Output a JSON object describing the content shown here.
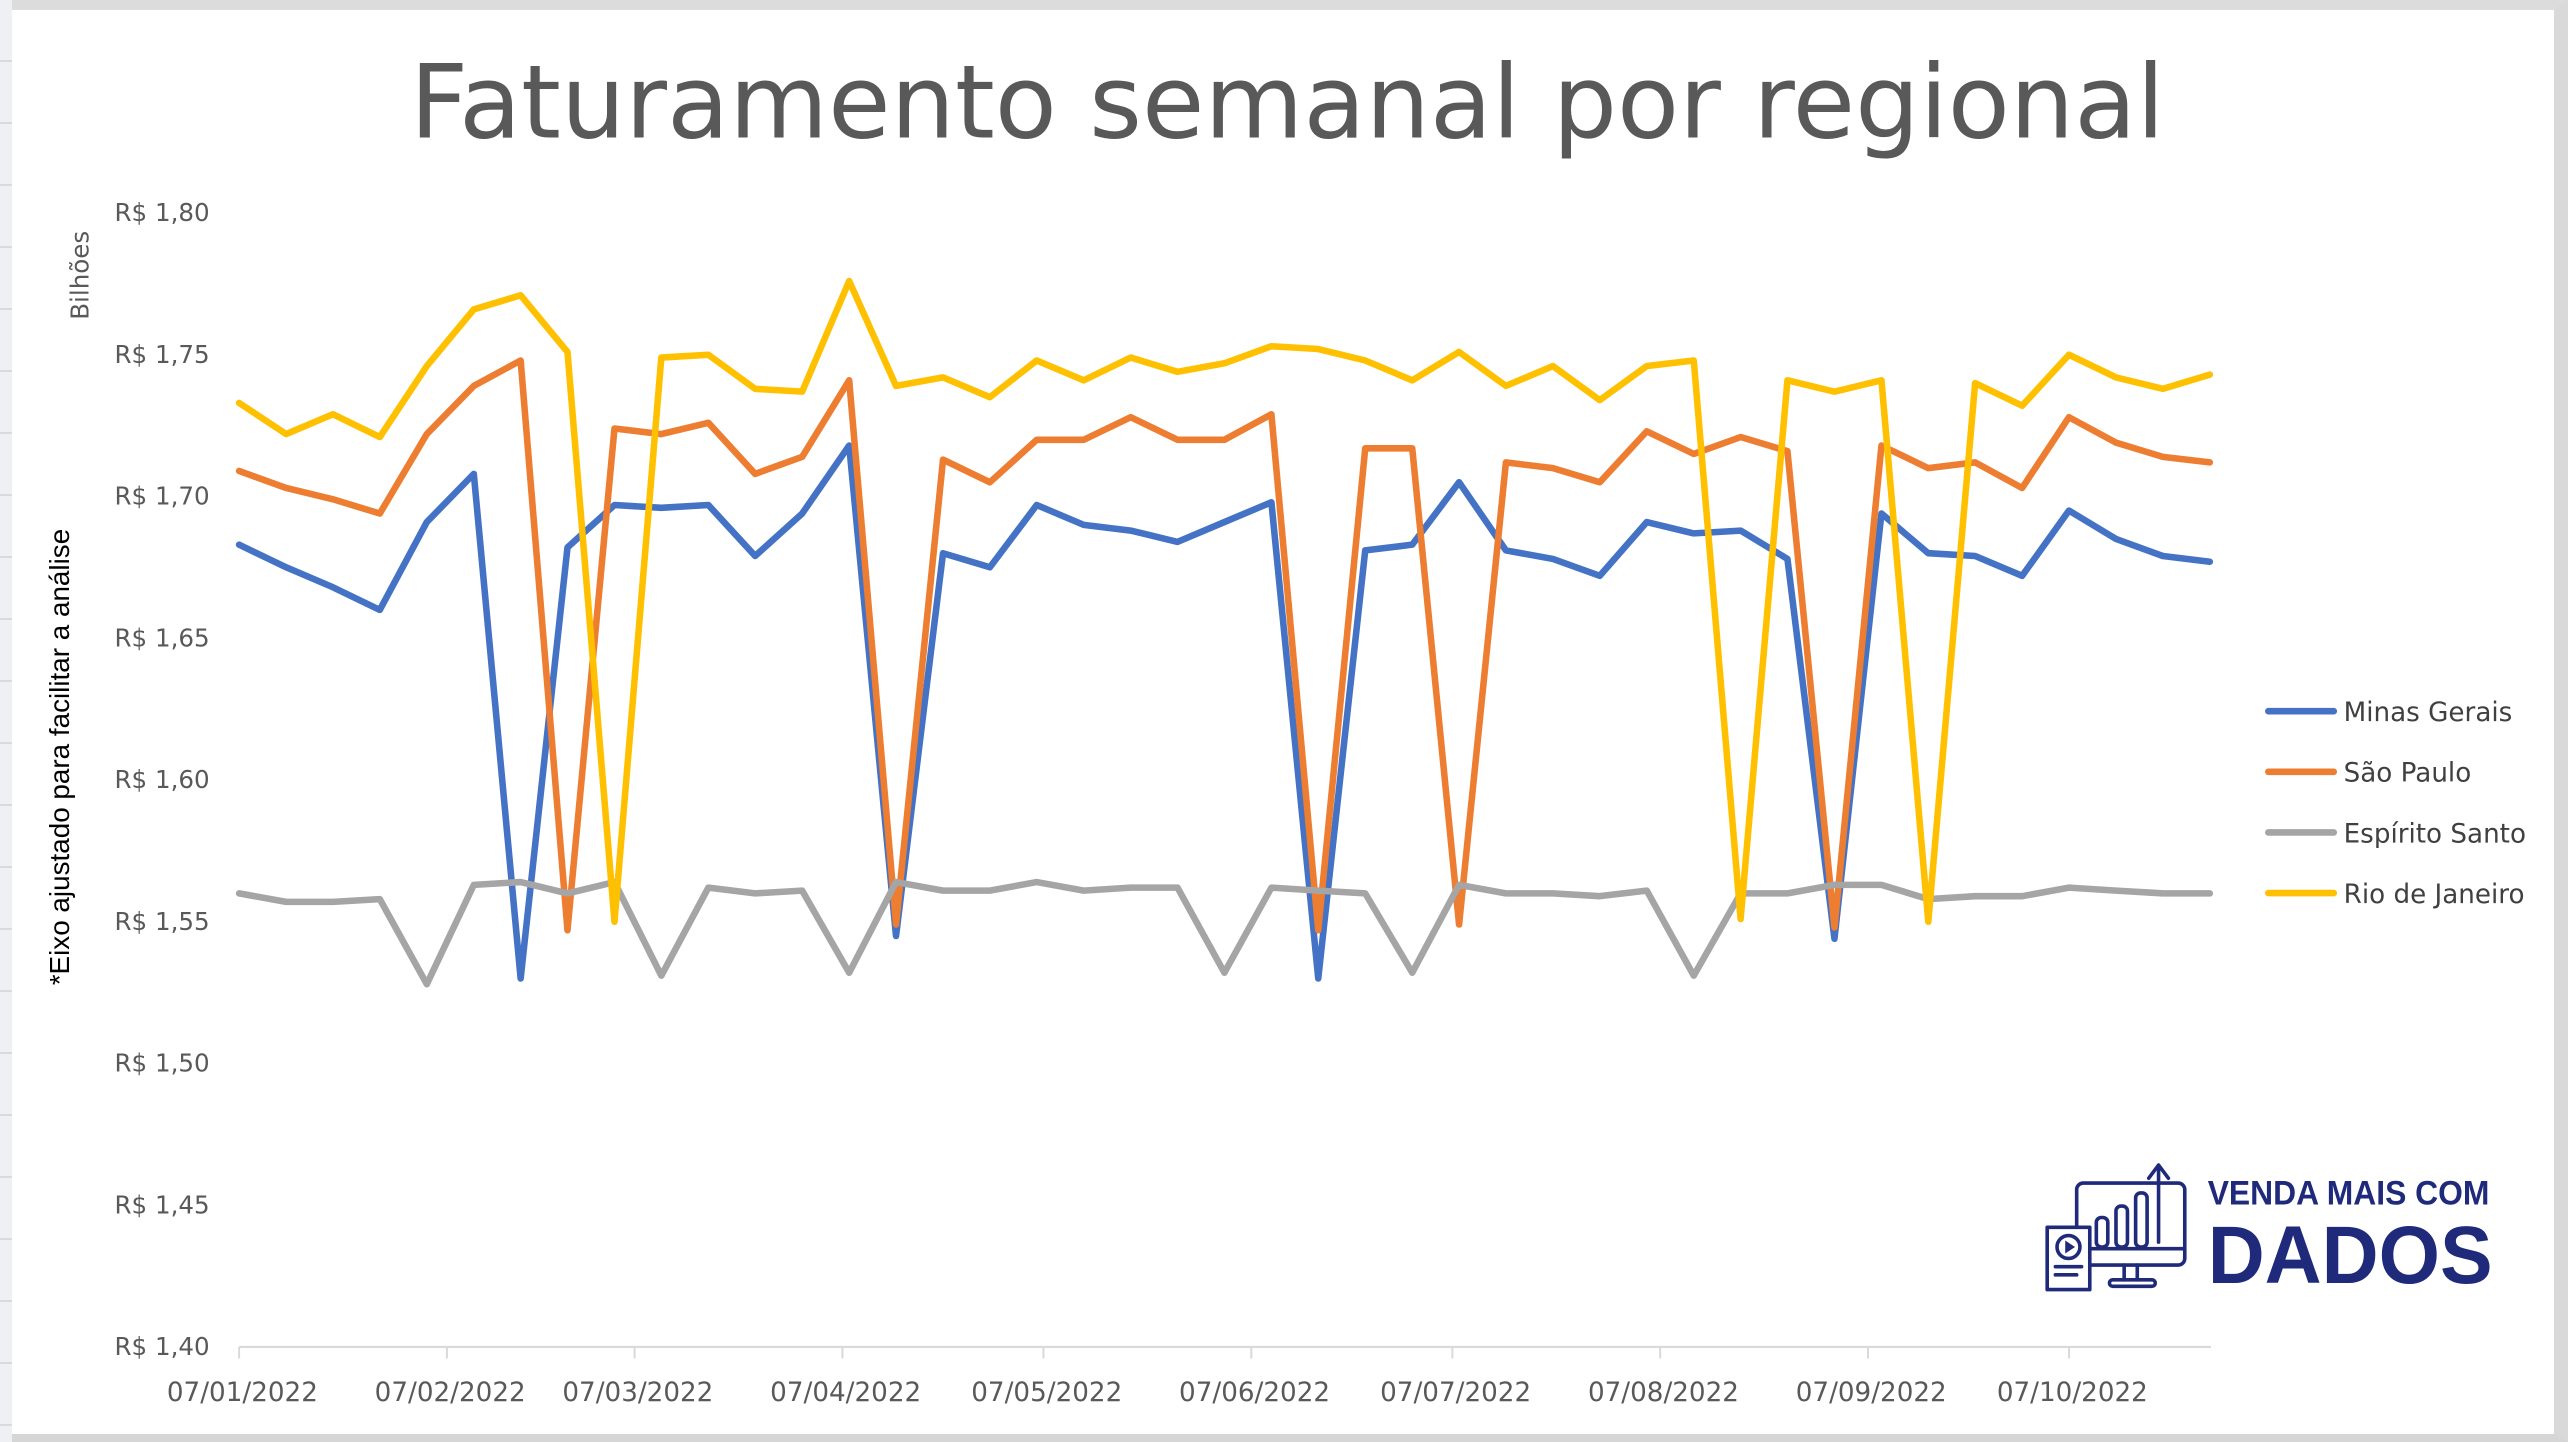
{
  "chart_data": {
    "type": "line",
    "title": "Faturamento semanal por regional",
    "xlabel": "",
    "ylabel": "*Eixo ajustado para facilitar a análise",
    "y_unit_label": "Bilhões",
    "ylim": [
      1.4,
      1.8
    ],
    "y_ticks": [
      "R$ 1,80",
      "R$ 1,75",
      "R$ 1,70",
      "R$ 1,65",
      "R$ 1,60",
      "R$ 1,55",
      "R$ 1,50",
      "R$ 1,45",
      "R$ 1,40"
    ],
    "x_ticks": [
      "07/01/2022",
      "07/02/2022",
      "07/03/2022",
      "07/04/2022",
      "07/05/2022",
      "07/06/2022",
      "07/07/2022",
      "07/08/2022",
      "07/09/2022",
      "07/10/2022"
    ],
    "x_frequency": "weekly",
    "x_start": "07/01/2022",
    "x": [
      "07/01/2022",
      "14/01/2022",
      "21/01/2022",
      "28/01/2022",
      "04/02/2022",
      "11/02/2022",
      "18/02/2022",
      "25/02/2022",
      "04/03/2022",
      "11/03/2022",
      "18/03/2022",
      "25/03/2022",
      "01/04/2022",
      "08/04/2022",
      "15/04/2022",
      "22/04/2022",
      "29/04/2022",
      "06/05/2022",
      "13/05/2022",
      "20/05/2022",
      "27/05/2022",
      "03/06/2022",
      "10/06/2022",
      "17/06/2022",
      "24/06/2022",
      "01/07/2022",
      "08/07/2022",
      "15/07/2022",
      "22/07/2022",
      "29/07/2022",
      "05/08/2022",
      "12/08/2022",
      "19/08/2022",
      "26/08/2022",
      "02/09/2022",
      "09/09/2022",
      "16/09/2022",
      "23/09/2022",
      "30/09/2022",
      "07/10/2022",
      "14/10/2022",
      "21/10/2022",
      "28/10/2022"
    ],
    "grid": false,
    "legend_position": "right",
    "series": [
      {
        "name": "Minas Gerais",
        "color": "#4472C4",
        "values": [
          1.683,
          1.675,
          1.668,
          1.66,
          1.691,
          1.708,
          1.53,
          1.682,
          1.697,
          1.696,
          1.697,
          1.679,
          1.694,
          1.718,
          1.545,
          1.68,
          1.675,
          1.697,
          1.69,
          1.688,
          1.684,
          1.691,
          1.698,
          1.53,
          1.681,
          1.683,
          1.705,
          1.681,
          1.678,
          1.672,
          1.691,
          1.687,
          1.688,
          1.678,
          1.544,
          1.694,
          1.68,
          1.679,
          1.672,
          1.695,
          1.685,
          1.679,
          1.677
        ]
      },
      {
        "name": "São Paulo",
        "color": "#ED7D31",
        "values": [
          1.709,
          1.703,
          1.699,
          1.694,
          1.722,
          1.739,
          1.748,
          1.547,
          1.724,
          1.722,
          1.726,
          1.708,
          1.714,
          1.741,
          1.549,
          1.713,
          1.705,
          1.72,
          1.72,
          1.728,
          1.72,
          1.72,
          1.729,
          1.547,
          1.717,
          1.717,
          1.549,
          1.712,
          1.71,
          1.705,
          1.723,
          1.715,
          1.721,
          1.716,
          1.548,
          1.718,
          1.71,
          1.712,
          1.703,
          1.728,
          1.719,
          1.714,
          1.712
        ]
      },
      {
        "name": "Espírito Santo",
        "color": "#A5A5A5",
        "values": [
          1.56,
          1.557,
          1.557,
          1.558,
          1.528,
          1.563,
          1.564,
          1.56,
          1.564,
          1.531,
          1.562,
          1.56,
          1.561,
          1.532,
          1.564,
          1.561,
          1.561,
          1.564,
          1.561,
          1.562,
          1.562,
          1.532,
          1.562,
          1.561,
          1.56,
          1.532,
          1.563,
          1.56,
          1.56,
          1.559,
          1.561,
          1.531,
          1.56,
          1.56,
          1.563,
          1.563,
          1.558,
          1.559,
          1.559,
          1.562,
          1.561,
          1.56,
          1.56
        ]
      },
      {
        "name": "Rio de Janeiro",
        "color": "#FFC000",
        "values": [
          1.733,
          1.722,
          1.729,
          1.721,
          1.746,
          1.766,
          1.771,
          1.751,
          1.55,
          1.749,
          1.75,
          1.738,
          1.737,
          1.776,
          1.739,
          1.742,
          1.735,
          1.748,
          1.741,
          1.749,
          1.744,
          1.747,
          1.753,
          1.752,
          1.748,
          1.741,
          1.751,
          1.739,
          1.746,
          1.734,
          1.746,
          1.748,
          1.551,
          1.741,
          1.737,
          1.741,
          1.55,
          1.74,
          1.732,
          1.75,
          1.742,
          1.738,
          1.743
        ]
      }
    ]
  },
  "logo": {
    "line1": "VENDA MAIS COM",
    "line2": "DADOS",
    "color": "#1f2a7a"
  }
}
